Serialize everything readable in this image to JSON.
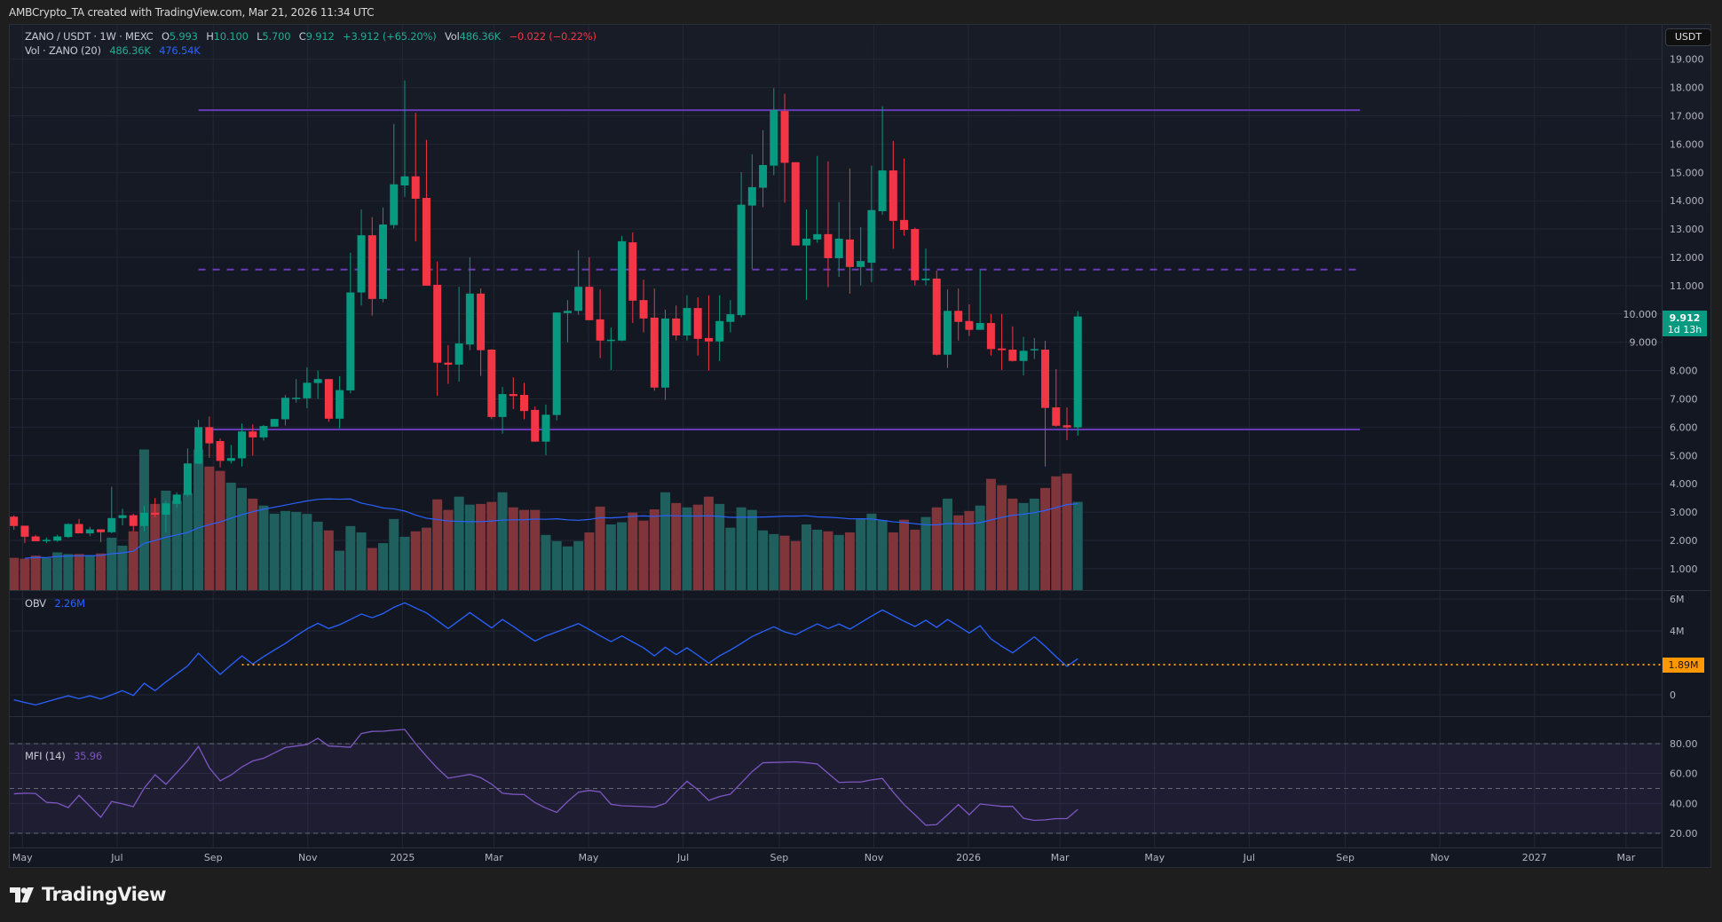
{
  "header": {
    "attribution": "AMBCrypto_TA created with TradingView.com, Mar 21, 2026 11:34 UTC"
  },
  "legend": {
    "symbol": "ZANO / USDT · 1W · MEXC",
    "o_label": "O",
    "o": "5.993",
    "h_label": "H",
    "h": "10.100",
    "l_label": "L",
    "l": "5.700",
    "c_label": "C",
    "c": "9.912",
    "change": "+3.912 (+65.20%)",
    "vol_label": "Vol",
    "vol": "486.36K",
    "vol_change": "−0.022 (−0.22%)",
    "vol_ind_label": "Vol · ZANO (20)",
    "vol_ind_value": "486.36K",
    "vol_ind_ma": "476.54K"
  },
  "obv_legend": {
    "label": "OBV",
    "value": "2.26M",
    "level_tag": "1.89M"
  },
  "mfi_legend": {
    "label": "MFI (14)",
    "value": "35.96"
  },
  "currency_button": "USDT",
  "price_tag": {
    "price": "9.912",
    "countdown": "1d 13h"
  },
  "footer": {
    "brand": "TradingView"
  },
  "colors": {
    "up": "#089981",
    "down": "#f23645",
    "vol_up": "#1f5f5d",
    "vol_down": "#7f3539",
    "vol_ma": "#2962ff",
    "obv": "#2962ff",
    "mfi": "#7e57c2",
    "level_lines": "#673ab7",
    "obv_level": "#ff9800",
    "background": "#131722"
  },
  "chart_data": {
    "type": "candlestick",
    "symbol": "ZANO/USDT",
    "interval": "1W",
    "exchange": "MEXC",
    "y_ticks": [
      "19.000",
      "18.000",
      "17.000",
      "16.000",
      "15.000",
      "14.000",
      "13.000",
      "12.000",
      "11.000",
      "10.000",
      "9.000",
      "8.000",
      "7.000",
      "6.000",
      "5.000",
      "4.000",
      "3.000",
      "2.000",
      "1.000"
    ],
    "x_ticks": [
      {
        "label": "May",
        "date": "2024-05-01"
      },
      {
        "label": "Jul",
        "date": "2024-07-01"
      },
      {
        "label": "Sep",
        "date": "2024-09-01"
      },
      {
        "label": "Nov",
        "date": "2024-11-01"
      },
      {
        "label": "2025",
        "date": "2025-01-01"
      },
      {
        "label": "Mar",
        "date": "2025-03-01"
      },
      {
        "label": "May",
        "date": "2025-05-01"
      },
      {
        "label": "Jul",
        "date": "2025-07-01"
      },
      {
        "label": "Sep",
        "date": "2025-09-01"
      },
      {
        "label": "Nov",
        "date": "2025-11-01"
      },
      {
        "label": "2026",
        "date": "2026-01-01"
      },
      {
        "label": "Mar",
        "date": "2026-03-01"
      },
      {
        "label": "May",
        "date": "2026-05-01"
      },
      {
        "label": "Jul",
        "date": "2026-07-01"
      },
      {
        "label": "Sep",
        "date": "2026-09-01"
      },
      {
        "label": "Nov",
        "date": "2026-11-01"
      },
      {
        "label": "2027",
        "date": "2027-01-01"
      },
      {
        "label": "Mar",
        "date": "2027-03-01"
      }
    ],
    "candle_fields": [
      "date",
      "open",
      "high",
      "low",
      "close",
      "volume_k"
    ],
    "candles": [
      [
        "2024-04-29",
        2.84,
        2.89,
        2.38,
        2.51,
        178
      ],
      [
        "2024-05-06",
        2.52,
        2.52,
        1.91,
        2.13,
        173
      ],
      [
        "2024-05-13",
        2.14,
        2.19,
        1.97,
        1.97,
        190
      ],
      [
        "2024-05-20",
        1.99,
        2.1,
        1.91,
        2.02,
        177
      ],
      [
        "2024-05-27",
        1.99,
        2.2,
        1.95,
        2.14,
        208
      ],
      [
        "2024-06-03",
        2.12,
        2.6,
        2.09,
        2.58,
        199
      ],
      [
        "2024-06-10",
        2.58,
        2.76,
        2.25,
        2.25,
        199
      ],
      [
        "2024-06-17",
        2.25,
        2.48,
        2.15,
        2.39,
        193
      ],
      [
        "2024-06-24",
        2.39,
        2.39,
        1.94,
        2.29,
        202
      ],
      [
        "2024-07-01",
        2.29,
        3.9,
        2.25,
        2.79,
        289
      ],
      [
        "2024-07-08",
        2.79,
        3.12,
        2.53,
        2.89,
        245
      ],
      [
        "2024-07-15",
        2.89,
        2.94,
        2.32,
        2.51,
        324
      ],
      [
        "2024-07-22",
        2.51,
        3.22,
        2.32,
        2.98,
        775
      ],
      [
        "2024-07-29",
        2.98,
        3.5,
        2.82,
        2.91,
        475
      ],
      [
        "2024-08-05",
        2.91,
        3.4,
        2.29,
        3.31,
        548
      ],
      [
        "2024-08-12",
        3.29,
        3.7,
        3.15,
        3.62,
        493
      ],
      [
        "2024-08-19",
        3.61,
        5.25,
        3.55,
        4.72,
        534
      ],
      [
        "2024-08-26",
        4.71,
        6.26,
        4.71,
        6.0,
        775
      ],
      [
        "2024-09-02",
        6.0,
        6.38,
        4.92,
        5.43,
        681
      ],
      [
        "2024-09-09",
        5.51,
        5.6,
        4.58,
        4.81,
        657
      ],
      [
        "2024-09-16",
        4.81,
        5.37,
        4.72,
        4.91,
        592
      ],
      [
        "2024-09-23",
        4.9,
        6.13,
        4.61,
        5.85,
        563
      ],
      [
        "2024-09-30",
        5.85,
        6.1,
        5.0,
        5.64,
        504
      ],
      [
        "2024-10-07",
        5.64,
        6.08,
        5.53,
        6.04,
        466
      ],
      [
        "2024-10-14",
        6.02,
        6.29,
        6.02,
        6.29,
        421
      ],
      [
        "2024-10-21",
        6.28,
        7.14,
        6.06,
        7.04,
        436
      ],
      [
        "2024-10-28",
        7.02,
        7.7,
        6.87,
        7.04,
        431
      ],
      [
        "2024-11-04",
        7.02,
        8.11,
        6.67,
        7.57,
        420
      ],
      [
        "2024-11-11",
        7.56,
        8.0,
        7.0,
        7.7,
        377
      ],
      [
        "2024-11-18",
        7.7,
        7.7,
        6.19,
        6.3,
        329
      ],
      [
        "2024-11-25",
        6.3,
        7.8,
        5.96,
        7.31,
        217
      ],
      [
        "2024-12-02",
        7.3,
        12.16,
        7.2,
        10.76,
        353
      ],
      [
        "2024-12-09",
        10.76,
        13.69,
        10.3,
        12.78,
        318
      ],
      [
        "2024-12-16",
        12.78,
        13.42,
        9.94,
        10.53,
        232
      ],
      [
        "2024-12-23",
        10.53,
        13.76,
        10.41,
        13.16,
        259
      ],
      [
        "2024-12-30",
        13.14,
        16.71,
        13.02,
        14.58,
        392
      ],
      [
        "2025-01-06",
        14.54,
        18.25,
        14.14,
        14.86,
        294
      ],
      [
        "2025-01-13",
        14.86,
        17.11,
        12.57,
        14.07,
        324
      ],
      [
        "2025-01-20",
        14.1,
        16.15,
        11.0,
        11.0,
        344
      ],
      [
        "2025-01-27",
        11.03,
        11.85,
        7.11,
        8.28,
        500
      ],
      [
        "2025-02-03",
        8.28,
        8.9,
        7.53,
        8.21,
        442
      ],
      [
        "2025-02-10",
        8.21,
        10.96,
        7.61,
        8.96,
        515
      ],
      [
        "2025-02-17",
        8.92,
        12.0,
        8.72,
        10.72,
        471
      ],
      [
        "2025-02-24",
        10.72,
        10.9,
        7.81,
        8.72,
        475
      ],
      [
        "2025-03-03",
        8.74,
        8.76,
        6.29,
        6.36,
        486
      ],
      [
        "2025-03-10",
        6.36,
        7.42,
        5.77,
        7.17,
        539
      ],
      [
        "2025-03-17",
        7.17,
        7.76,
        6.64,
        7.1,
        456
      ],
      [
        "2025-03-24",
        7.14,
        7.57,
        6.28,
        6.57,
        442
      ],
      [
        "2025-03-31",
        6.61,
        6.73,
        5.49,
        5.49,
        442
      ],
      [
        "2025-04-07",
        5.49,
        6.8,
        5.01,
        6.44,
        304
      ],
      [
        "2025-04-14",
        6.43,
        10.05,
        6.24,
        10.05,
        270
      ],
      [
        "2025-04-21",
        10.03,
        10.49,
        9.0,
        10.11,
        241
      ],
      [
        "2025-04-28",
        10.11,
        12.25,
        9.97,
        10.96,
        270
      ],
      [
        "2025-05-05",
        10.96,
        12.0,
        9.78,
        9.78,
        318
      ],
      [
        "2025-05-12",
        9.81,
        10.87,
        8.44,
        9.06,
        460
      ],
      [
        "2025-05-19",
        9.06,
        9.52,
        8.02,
        9.09,
        362
      ],
      [
        "2025-05-26",
        9.06,
        12.76,
        9.04,
        12.57,
        374
      ],
      [
        "2025-06-02",
        12.53,
        12.88,
        9.68,
        10.47,
        427
      ],
      [
        "2025-06-09",
        10.49,
        11.21,
        9.35,
        9.84,
        383
      ],
      [
        "2025-06-16",
        9.87,
        10.9,
        7.29,
        7.4,
        445
      ],
      [
        "2025-06-23",
        7.4,
        10.15,
        6.96,
        9.84,
        539
      ],
      [
        "2025-06-30",
        9.84,
        10.3,
        9.06,
        9.24,
        480
      ],
      [
        "2025-07-07",
        9.24,
        10.66,
        9.06,
        10.21,
        456
      ],
      [
        "2025-07-14",
        10.21,
        10.59,
        8.53,
        9.12,
        471
      ],
      [
        "2025-07-21",
        9.15,
        10.66,
        8.0,
        9.03,
        515
      ],
      [
        "2025-07-28",
        9.03,
        10.66,
        8.34,
        9.75,
        475
      ],
      [
        "2025-08-04",
        9.72,
        10.49,
        9.35,
        9.99,
        344
      ],
      [
        "2025-08-11",
        9.96,
        15.01,
        9.88,
        13.86,
        456
      ],
      [
        "2025-08-18",
        13.83,
        15.64,
        11.58,
        14.48,
        442
      ],
      [
        "2025-08-25",
        14.46,
        16.49,
        13.77,
        15.26,
        329
      ],
      [
        "2025-09-01",
        15.24,
        17.98,
        14.9,
        17.21,
        309
      ],
      [
        "2025-09-08",
        17.17,
        17.78,
        13.93,
        15.34,
        300
      ],
      [
        "2025-09-15",
        15.36,
        15.36,
        12.42,
        12.42,
        270
      ],
      [
        "2025-09-22",
        12.42,
        13.69,
        10.5,
        12.66,
        362
      ],
      [
        "2025-09-29",
        12.63,
        15.58,
        12.51,
        12.82,
        333
      ],
      [
        "2025-10-06",
        12.82,
        15.39,
        10.95,
        11.97,
        324
      ],
      [
        "2025-10-13",
        11.97,
        13.95,
        11.31,
        12.66,
        304
      ],
      [
        "2025-10-20",
        12.63,
        15.14,
        10.72,
        11.66,
        318
      ],
      [
        "2025-10-27",
        11.66,
        13.07,
        11.01,
        11.87,
        392
      ],
      [
        "2025-11-03",
        11.81,
        15.24,
        11.12,
        13.67,
        421
      ],
      [
        "2025-11-10",
        13.63,
        17.34,
        13.51,
        15.07,
        386
      ],
      [
        "2025-11-17",
        15.07,
        16.11,
        12.3,
        13.29,
        318
      ],
      [
        "2025-11-24",
        13.32,
        15.49,
        12.77,
        12.97,
        388
      ],
      [
        "2025-12-01",
        13.0,
        13.05,
        11.01,
        11.19,
        333
      ],
      [
        "2025-12-08",
        11.19,
        12.31,
        11.01,
        11.25,
        403
      ],
      [
        "2025-12-15",
        11.25,
        11.53,
        8.53,
        8.56,
        456
      ],
      [
        "2025-12-22",
        8.56,
        10.87,
        8.09,
        10.11,
        504
      ],
      [
        "2025-12-29",
        10.11,
        10.9,
        9.06,
        9.72,
        412
      ],
      [
        "2026-01-05",
        9.75,
        10.34,
        9.22,
        9.44,
        436
      ],
      [
        "2026-01-12",
        9.44,
        11.57,
        9.44,
        9.68,
        466
      ],
      [
        "2026-01-19",
        9.68,
        10.0,
        8.53,
        8.76,
        613
      ],
      [
        "2026-01-26",
        8.78,
        10.0,
        8.02,
        8.72,
        578
      ],
      [
        "2026-02-02",
        8.74,
        9.56,
        8.32,
        8.34,
        504
      ],
      [
        "2026-02-09",
        8.34,
        9.19,
        7.83,
        8.7,
        480
      ],
      [
        "2026-02-16",
        8.72,
        9.15,
        8.41,
        8.76,
        504
      ],
      [
        "2026-02-23",
        8.74,
        9.05,
        4.61,
        6.68,
        563
      ],
      [
        "2026-03-02",
        6.7,
        8.05,
        6.02,
        6.05,
        627
      ],
      [
        "2026-03-09",
        6.07,
        6.7,
        5.54,
        5.99,
        642
      ],
      [
        "2026-03-16",
        5.993,
        10.1,
        5.7,
        9.912,
        486.36
      ]
    ],
    "volume_ma_period": 20,
    "level_lines": [
      {
        "price": 17.2,
        "style": "solid",
        "from": "2024-08-26",
        "to": "2026-09-14"
      },
      {
        "price": 11.57,
        "style": "dashed",
        "from": "2024-08-26",
        "to": "2026-09-14"
      },
      {
        "price": 5.92,
        "style": "solid",
        "from": "2024-09-02",
        "to": "2026-09-14"
      }
    ],
    "obv": {
      "unit": "M",
      "y_ticks": [
        "6M",
        "4M",
        "0"
      ],
      "level": 1.89,
      "level_from": "2024-09-23",
      "values": [
        -0.31,
        -0.48,
        -0.63,
        -0.44,
        -0.24,
        -0.06,
        -0.24,
        -0.06,
        -0.26,
        0.0,
        0.26,
        -0.04,
        0.72,
        0.26,
        0.81,
        1.31,
        1.81,
        2.61,
        1.94,
        1.28,
        1.87,
        2.44,
        1.93,
        2.39,
        2.81,
        3.22,
        3.69,
        4.13,
        4.48,
        4.15,
        4.39,
        4.72,
        5.06,
        4.83,
        5.09,
        5.48,
        5.76,
        5.44,
        5.13,
        4.65,
        4.15,
        4.65,
        5.15,
        4.67,
        4.19,
        4.72,
        4.28,
        3.81,
        3.37,
        3.69,
        3.94,
        4.2,
        4.46,
        4.09,
        3.7,
        3.33,
        3.69,
        3.31,
        2.94,
        2.44,
        2.98,
        2.52,
        2.94,
        2.48,
        1.98,
        2.44,
        2.8,
        3.22,
        3.65,
        3.96,
        4.26,
        3.94,
        3.76,
        4.11,
        4.44,
        4.15,
        4.43,
        4.11,
        4.52,
        4.93,
        5.31,
        4.96,
        4.61,
        4.28,
        4.67,
        4.22,
        4.72,
        4.3,
        3.87,
        4.33,
        3.5,
        3.04,
        2.63,
        3.13,
        3.63,
        3.04,
        2.39,
        1.78,
        2.26
      ]
    },
    "mfi": {
      "period": 14,
      "y_ticks": [
        "80.00",
        "60.00",
        "40.00",
        "20.00"
      ],
      "bands": [
        80,
        50,
        20
      ],
      "values": [
        46.4,
        46.8,
        46.6,
        40.7,
        40.2,
        37.2,
        45.4,
        38.1,
        30.7,
        41.3,
        39.7,
        37.8,
        50.2,
        59.2,
        52.8,
        60.6,
        68.6,
        78.1,
        63.8,
        55.1,
        59.0,
        64.4,
        68.4,
        70.2,
        73.8,
        77.4,
        78.4,
        79.4,
        83.6,
        78.4,
        78.0,
        77.6,
        86.8,
        88.2,
        88.3,
        89.0,
        89.5,
        80.0,
        71.6,
        63.6,
        56.9,
        58.1,
        59.4,
        57.2,
        52.9,
        46.8,
        46.1,
        45.9,
        40.5,
        36.9,
        34.0,
        41.2,
        47.5,
        48.7,
        47.7,
        39.4,
        38.4,
        38.1,
        37.9,
        37.5,
        40.0,
        47.7,
        54.8,
        49.1,
        42.0,
        44.6,
        46.2,
        53.7,
        61.3,
        67.2,
        67.4,
        67.6,
        67.8,
        67.2,
        66.4,
        60.2,
        54.0,
        54.3,
        54.3,
        55.7,
        56.7,
        47.5,
        39.2,
        32.4,
        25.4,
        25.8,
        32.4,
        39.2,
        32.4,
        39.6,
        38.8,
        38.0,
        38.0,
        30.0,
        28.6,
        29.0,
        29.8,
        29.8,
        35.96
      ]
    }
  }
}
